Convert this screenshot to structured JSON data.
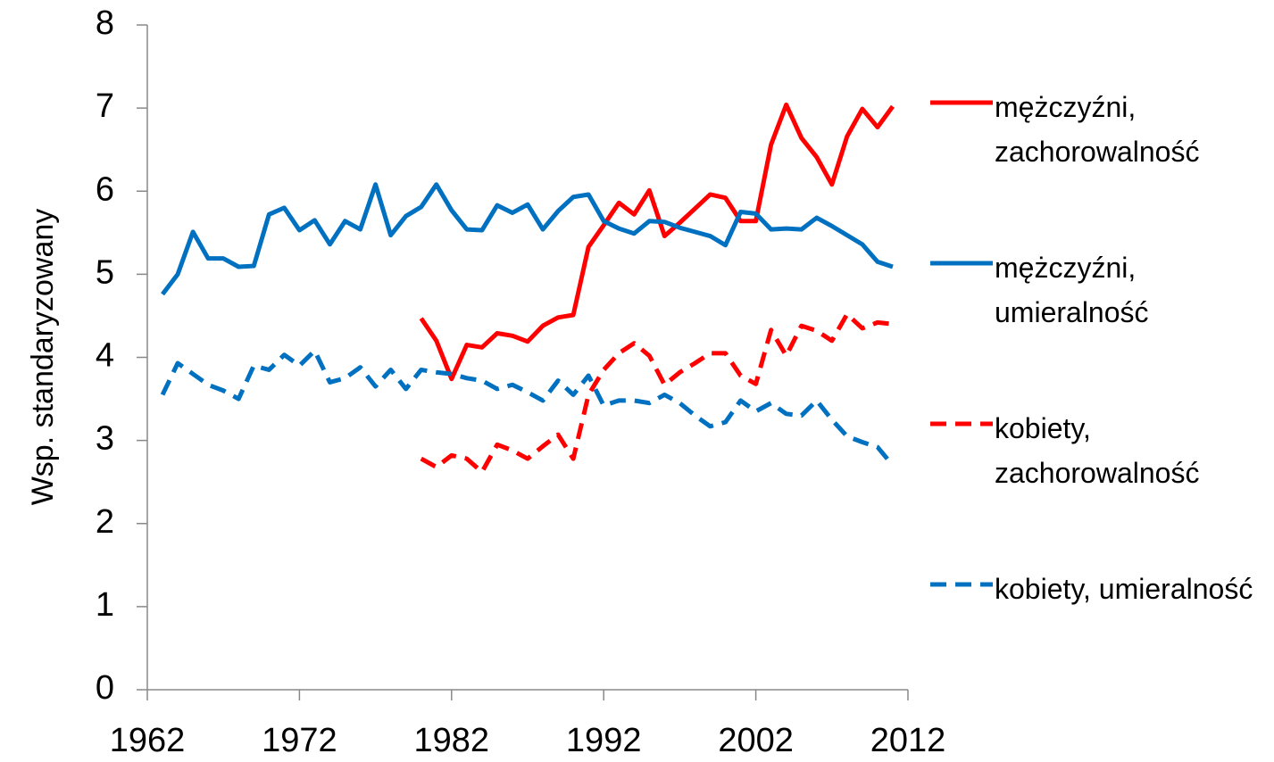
{
  "chart_data": {
    "type": "line",
    "y_label": "Wsp. standaryzowany",
    "x": [
      1963,
      1964,
      1965,
      1966,
      1967,
      1968,
      1969,
      1970,
      1971,
      1972,
      1973,
      1974,
      1975,
      1976,
      1977,
      1978,
      1979,
      1980,
      1981,
      1982,
      1983,
      1984,
      1985,
      1986,
      1987,
      1988,
      1989,
      1990,
      1991,
      1992,
      1993,
      1994,
      1995,
      1996,
      1997,
      1998,
      1999,
      2000,
      2001,
      2002,
      2003,
      2004,
      2005,
      2006,
      2007,
      2008,
      2009,
      2010,
      2011
    ],
    "xlim": [
      1962,
      2012
    ],
    "xticks": [
      1962,
      1972,
      1982,
      1992,
      2002,
      2012
    ],
    "ylim": [
      0,
      8
    ],
    "yticks": [
      0,
      1,
      2,
      3,
      4,
      5,
      6,
      7,
      8
    ],
    "series": [
      {
        "name": "mężczyźni, zachorowalność",
        "color": "#ff0000",
        "dash": false,
        "values": [
          null,
          null,
          null,
          null,
          null,
          null,
          null,
          null,
          null,
          null,
          null,
          null,
          null,
          null,
          null,
          null,
          null,
          4.47,
          4.2,
          3.74,
          4.15,
          4.12,
          4.29,
          4.26,
          4.19,
          4.38,
          4.48,
          4.51,
          5.33,
          5.59,
          5.86,
          5.72,
          6.01,
          5.46,
          5.62,
          5.79,
          5.96,
          5.92,
          5.64,
          5.64,
          6.56,
          7.04,
          6.64,
          6.41,
          6.08,
          6.66,
          6.99,
          6.77,
          7.02
        ]
      },
      {
        "name": "mężczyźni, umieralność",
        "color": "#0070c0",
        "dash": false,
        "values": [
          4.76,
          5.0,
          5.51,
          5.19,
          5.19,
          5.09,
          5.1,
          5.72,
          5.8,
          5.53,
          5.65,
          5.36,
          5.64,
          5.54,
          6.08,
          5.47,
          5.7,
          5.81,
          6.08,
          5.77,
          5.54,
          5.53,
          5.83,
          5.74,
          5.84,
          5.54,
          5.76,
          5.93,
          5.96,
          5.64,
          5.55,
          5.49,
          5.64,
          5.63,
          5.56,
          5.51,
          5.46,
          5.35,
          5.75,
          5.73,
          5.54,
          5.55,
          5.54,
          5.68,
          5.58,
          5.47,
          5.36,
          5.15,
          5.09
        ]
      },
      {
        "name": "kobiety, zachorowalność",
        "color": "#ff0000",
        "dash": true,
        "values": [
          null,
          null,
          null,
          null,
          null,
          null,
          null,
          null,
          null,
          null,
          null,
          null,
          null,
          null,
          null,
          null,
          null,
          2.78,
          2.68,
          2.82,
          2.78,
          2.62,
          2.95,
          2.88,
          2.78,
          2.93,
          3.07,
          2.78,
          3.55,
          3.85,
          4.05,
          4.17,
          4.02,
          3.67,
          3.82,
          3.93,
          4.05,
          4.05,
          3.78,
          3.68,
          4.33,
          4.02,
          4.38,
          4.32,
          4.2,
          4.52,
          4.35,
          4.42,
          4.4
        ]
      },
      {
        "name": "kobiety, umieralność",
        "color": "#0070c0",
        "dash": true,
        "values": [
          3.55,
          3.93,
          3.8,
          3.67,
          3.6,
          3.5,
          3.9,
          3.85,
          4.03,
          3.9,
          4.08,
          3.7,
          3.75,
          3.88,
          3.65,
          3.85,
          3.62,
          3.85,
          3.82,
          3.8,
          3.75,
          3.72,
          3.62,
          3.67,
          3.58,
          3.48,
          3.72,
          3.55,
          3.78,
          3.42,
          3.48,
          3.48,
          3.45,
          3.55,
          3.45,
          3.3,
          3.17,
          3.22,
          3.48,
          3.35,
          3.45,
          3.32,
          3.3,
          3.48,
          3.25,
          3.05,
          2.98,
          2.92,
          2.7
        ]
      }
    ]
  }
}
